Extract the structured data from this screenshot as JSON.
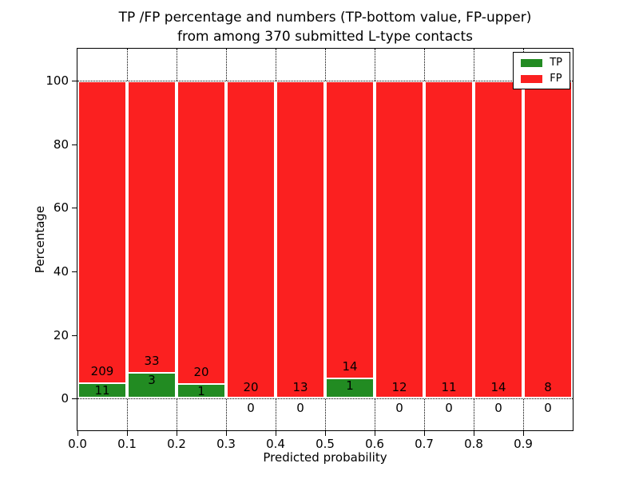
{
  "title": {
    "line1": "TP /FP percentage and numbers (TP-bottom value, FP-upper)",
    "line2": "from among 370 submitted L-type contacts"
  },
  "axes": {
    "ylabel": "Percentage",
    "xlabel": "Predicted probability"
  },
  "chart_data": {
    "type": "bar",
    "subtype": "stacked-percentage-histogram",
    "title": "TP /FP percentage and numbers (TP-bottom value, FP-upper) from among 370 submitted L-type contacts",
    "xlabel": "Predicted probability",
    "ylabel": "Percentage",
    "xlim": [
      0.0,
      1.0
    ],
    "ylim": [
      -10,
      110
    ],
    "grid": "dotted",
    "legend_position": "upper right",
    "x_tick_labels": [
      "0.0",
      "0.1",
      "0.2",
      "0.3",
      "0.4",
      "0.5",
      "0.6",
      "0.7",
      "0.8",
      "0.9"
    ],
    "y_ticks": [
      0,
      20,
      40,
      60,
      80,
      100
    ],
    "series": [
      {
        "name": "TP",
        "color": "#228b22"
      },
      {
        "name": "FP",
        "color": "#fb2020"
      }
    ],
    "total_contacts": 370,
    "bins": [
      {
        "range": "0.0-0.1",
        "tp": 11,
        "fp": 209
      },
      {
        "range": "0.1-0.2",
        "tp": 3,
        "fp": 33
      },
      {
        "range": "0.2-0.3",
        "tp": 1,
        "fp": 20
      },
      {
        "range": "0.3-0.4",
        "tp": 0,
        "fp": 20
      },
      {
        "range": "0.4-0.5",
        "tp": 0,
        "fp": 13
      },
      {
        "range": "0.5-0.6",
        "tp": 1,
        "fp": 14
      },
      {
        "range": "0.6-0.7",
        "tp": 0,
        "fp": 12
      },
      {
        "range": "0.7-0.8",
        "tp": 0,
        "fp": 11
      },
      {
        "range": "0.8-0.9",
        "tp": 0,
        "fp": 14
      },
      {
        "range": "0.9-1.0",
        "tp": 0,
        "fp": 8
      }
    ]
  }
}
